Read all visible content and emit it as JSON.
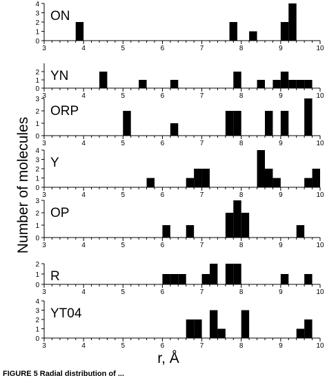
{
  "chart_data": {
    "type": "bar",
    "xlabel": "r, Å",
    "ylabel": "Number of molecules",
    "xlim": [
      3,
      10
    ],
    "x_ticks": [
      "3",
      "4",
      "5",
      "6",
      "7",
      "8",
      "9",
      "10"
    ],
    "bin_width": 0.2,
    "grid": false,
    "panels": [
      {
        "name": "ON",
        "ylim": [
          0,
          4
        ],
        "y_ticks": [
          "0",
          "1",
          "2",
          "3",
          "4"
        ],
        "bins": [
          [
            3.9,
            2
          ],
          [
            7.8,
            2
          ],
          [
            8.3,
            1
          ],
          [
            9.1,
            2
          ],
          [
            9.3,
            4
          ]
        ]
      },
      {
        "name": "YN",
        "ylim": [
          0,
          3
        ],
        "y_ticks": [
          "0",
          "1",
          "2"
        ],
        "bins": [
          [
            4.5,
            2
          ],
          [
            5.5,
            1
          ],
          [
            6.3,
            1
          ],
          [
            7.9,
            2
          ],
          [
            8.5,
            1
          ],
          [
            8.9,
            1
          ],
          [
            9.1,
            2
          ],
          [
            9.3,
            1
          ],
          [
            9.5,
            1
          ],
          [
            9.7,
            1
          ]
        ]
      },
      {
        "name": "ORP",
        "ylim": [
          0,
          3
        ],
        "y_ticks": [
          "0",
          "1",
          "2",
          "3"
        ],
        "bins": [
          [
            5.1,
            2
          ],
          [
            6.3,
            1
          ],
          [
            7.7,
            2
          ],
          [
            7.9,
            2
          ],
          [
            8.7,
            2
          ],
          [
            9.1,
            2
          ],
          [
            9.7,
            3
          ]
        ]
      },
      {
        "name": "Y",
        "ylim": [
          0,
          4
        ],
        "y_ticks": [
          "0",
          "1",
          "2",
          "3",
          "4"
        ],
        "bins": [
          [
            5.7,
            1
          ],
          [
            6.7,
            1
          ],
          [
            6.9,
            2
          ],
          [
            7.1,
            2
          ],
          [
            8.5,
            4
          ],
          [
            8.7,
            2
          ],
          [
            8.9,
            1
          ],
          [
            9.7,
            1
          ],
          [
            9.9,
            2
          ]
        ]
      },
      {
        "name": "OP",
        "ylim": [
          0,
          3
        ],
        "y_ticks": [
          "0",
          "1",
          "2",
          "3"
        ],
        "bins": [
          [
            6.1,
            1
          ],
          [
            6.7,
            1
          ],
          [
            7.7,
            2
          ],
          [
            7.9,
            3
          ],
          [
            8.1,
            2
          ],
          [
            9.5,
            1
          ]
        ]
      },
      {
        "name": "R",
        "ylim": [
          0,
          2
        ],
        "y_ticks": [
          "0",
          "1",
          "2"
        ],
        "bins": [
          [
            6.1,
            1
          ],
          [
            6.3,
            1
          ],
          [
            6.5,
            1
          ],
          [
            7.1,
            1
          ],
          [
            7.3,
            2
          ],
          [
            7.7,
            2
          ],
          [
            7.9,
            2
          ],
          [
            9.1,
            1
          ],
          [
            9.7,
            1
          ]
        ]
      },
      {
        "name": "YT04",
        "ylim": [
          0,
          4
        ],
        "y_ticks": [
          "0",
          "1",
          "2",
          "3",
          "4"
        ],
        "bins": [
          [
            6.7,
            2
          ],
          [
            6.9,
            2
          ],
          [
            7.3,
            3
          ],
          [
            7.5,
            1
          ],
          [
            8.1,
            3
          ],
          [
            9.5,
            1
          ],
          [
            9.7,
            2
          ]
        ]
      }
    ]
  },
  "caption": "FIGURE 5   Radial distribution of ..."
}
